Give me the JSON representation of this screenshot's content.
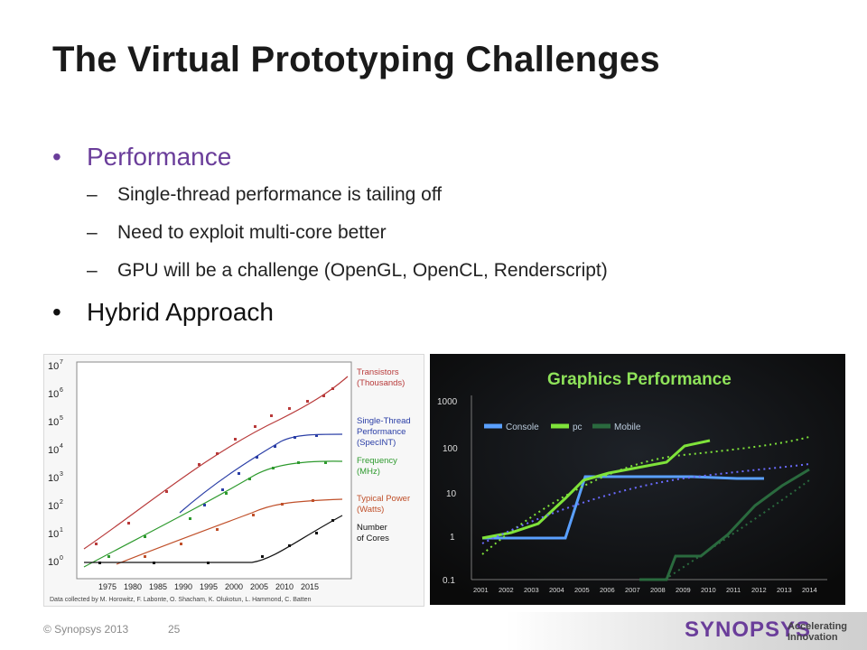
{
  "slide": {
    "title": "The Virtual Prototyping Challenges",
    "bullets": [
      {
        "text": "Performance",
        "sub": [
          "Single-thread performance is tailing off",
          "Need to exploit multi-core better",
          "GPU will be a challenge (OpenGL, OpenCL, Renderscript)"
        ]
      },
      {
        "text": "Hybrid Approach",
        "sub": []
      }
    ],
    "bullet_glyph": "•",
    "dash_glyph": "–"
  },
  "left_chart": {
    "y_ticks": [
      "10",
      "10",
      "10",
      "10",
      "10",
      "10",
      "10",
      "10"
    ],
    "y_exps": [
      "0",
      "1",
      "2",
      "3",
      "4",
      "5",
      "6",
      "7"
    ],
    "x_ticks": [
      "1975",
      "1980",
      "1985",
      "1990",
      "1995",
      "2000",
      "2005",
      "2010",
      "2015"
    ],
    "legend": [
      {
        "line1": "Transistors",
        "line2": "(Thousands)",
        "line3": "",
        "color": "#b83a3a"
      },
      {
        "line1": "Single-Thread",
        "line2": "Performance",
        "line3": "(SpecINT)",
        "color": "#2a3ea6"
      },
      {
        "line1": "Frequency",
        "line2": "(MHz)",
        "line3": "",
        "color": "#2e9a2e"
      },
      {
        "line1": "Typical Power",
        "line2": "(Watts)",
        "line3": "",
        "color": "#c0502a"
      },
      {
        "line1": "Number",
        "line2": "of Cores",
        "line3": "",
        "color": "#111111"
      }
    ],
    "credit": "Data collected by M. Horowitz, F. Labonte, O. Shacham, K. Olukotun, L. Hammond, C. Batten"
  },
  "right_chart": {
    "title": "Graphics Performance",
    "legend": [
      {
        "label": "Console",
        "color": "#5aa0ff"
      },
      {
        "label": "pc",
        "color": "#7fe33a"
      },
      {
        "label": "Mobile",
        "color": "#2a6a3e"
      }
    ],
    "y_ticks": [
      "1000",
      "100",
      "10",
      "1",
      "0.1"
    ],
    "x_ticks": [
      "2001",
      "2002",
      "2003",
      "2004",
      "2005",
      "2006",
      "2007",
      "2008",
      "2009",
      "2010",
      "2011",
      "2012",
      "2013",
      "2014"
    ]
  },
  "footer": {
    "copyright": "© Synopsys 2013",
    "page_number": "25",
    "logo_text": "SYNOPSYS",
    "tagline_1": "Accelerating",
    "tagline_2": "Innovation"
  },
  "colors": {
    "accent": "#6a3d9a"
  }
}
